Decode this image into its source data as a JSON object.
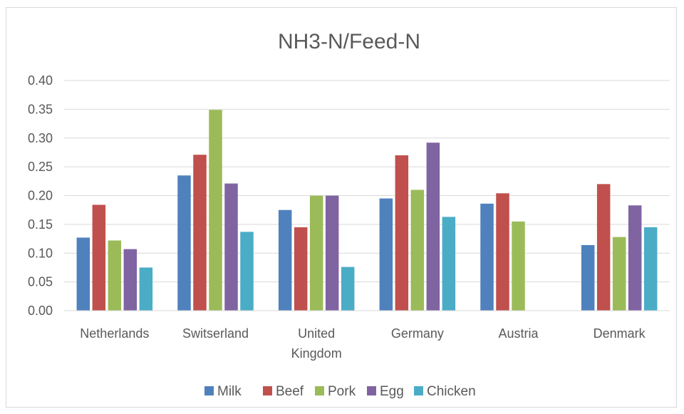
{
  "chart_data": {
    "type": "bar",
    "title": "NH3-N/Feed-N",
    "categories": [
      "Netherlands",
      "Switserland",
      "United Kingdom",
      "Germany",
      "Austria",
      "Denmark"
    ],
    "category_lines": [
      [
        "Netherlands"
      ],
      [
        "Switserland"
      ],
      [
        "United",
        "Kingdom"
      ],
      [
        "Germany"
      ],
      [
        "Austria"
      ],
      [
        "Denmark"
      ]
    ],
    "series": [
      {
        "name": "Milk",
        "color": "#4f81bd",
        "values": [
          0.127,
          0.235,
          0.175,
          0.195,
          0.186,
          0.114
        ]
      },
      {
        "name": "Beef",
        "color": "#c0504d",
        "values": [
          0.184,
          0.271,
          0.145,
          0.27,
          0.204,
          0.22
        ]
      },
      {
        "name": "Pork",
        "color": "#9bbb59",
        "values": [
          0.122,
          0.349,
          0.2,
          0.21,
          0.155,
          0.128
        ]
      },
      {
        "name": "Egg",
        "color": "#8064a2",
        "values": [
          0.107,
          0.221,
          0.2,
          0.292,
          null,
          0.183
        ]
      },
      {
        "name": "Chicken",
        "color": "#4bacc6",
        "values": [
          0.075,
          0.137,
          0.076,
          0.163,
          null,
          0.145
        ]
      }
    ],
    "ylim": [
      0,
      0.4
    ],
    "yticks": [
      "0.00",
      "0.05",
      "0.10",
      "0.15",
      "0.20",
      "0.25",
      "0.30",
      "0.35",
      "0.40"
    ],
    "xlabel": "",
    "ylabel": "",
    "grid": true,
    "legend_position": "bottom"
  }
}
